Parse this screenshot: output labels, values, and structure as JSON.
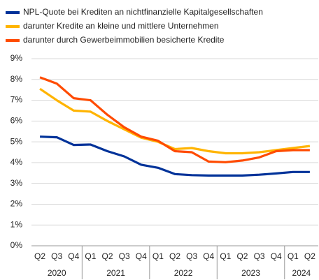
{
  "chart_data": {
    "type": "line",
    "categories": [
      "Q2",
      "Q3",
      "Q4",
      "Q1",
      "Q2",
      "Q3",
      "Q4",
      "Q1",
      "Q2",
      "Q3",
      "Q4",
      "Q1",
      "Q2",
      "Q3",
      "Q4",
      "Q1",
      "Q2"
    ],
    "year_labels": [
      "2020",
      "2021",
      "2022",
      "2023",
      "2024"
    ],
    "series": [
      {
        "name": "NPL-Quote bei Krediten an nichtfinanzielle Kapitalgesellschaften",
        "color": "#003299",
        "values": [
          5.25,
          5.22,
          4.85,
          4.87,
          4.55,
          4.3,
          3.9,
          3.75,
          3.45,
          3.4,
          3.38,
          3.38,
          3.38,
          3.42,
          3.48,
          3.55,
          3.55
        ]
      },
      {
        "name": "darunter Kredite an kleine und mittlere Unternehmen",
        "color": "#ffb400",
        "values": [
          7.55,
          7.0,
          6.5,
          6.45,
          6.0,
          5.6,
          5.2,
          5.0,
          4.65,
          4.7,
          4.55,
          4.45,
          4.45,
          4.5,
          4.6,
          4.7,
          4.8
        ]
      },
      {
        "name": "darunter durch Gewerbeimmobilien besicherte Kredite",
        "color": "#ff4b00",
        "values": [
          8.1,
          7.8,
          7.1,
          7.0,
          6.3,
          5.7,
          5.25,
          5.05,
          4.55,
          4.5,
          4.05,
          4.02,
          4.1,
          4.25,
          4.55,
          4.6,
          4.6
        ]
      }
    ],
    "ylim": [
      0,
      9
    ],
    "yticks": [
      {
        "value": 0,
        "label": "0%"
      },
      {
        "value": 1,
        "label": "1%"
      },
      {
        "value": 2,
        "label": "2%"
      },
      {
        "value": 3,
        "label": "3%"
      },
      {
        "value": 4,
        "label": "4%"
      },
      {
        "value": 5,
        "label": "5%"
      },
      {
        "value": 6,
        "label": "6%"
      },
      {
        "value": 7,
        "label": "7%"
      },
      {
        "value": 8,
        "label": "8%"
      },
      {
        "value": 9,
        "label": "9%"
      }
    ],
    "grid": true
  }
}
